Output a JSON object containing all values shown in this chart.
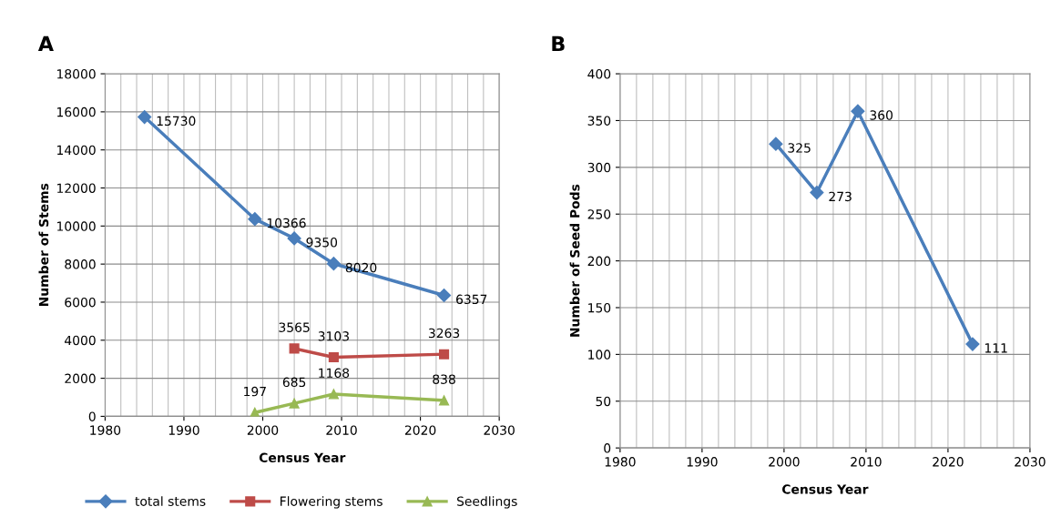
{
  "chart_data": [
    {
      "type": "line",
      "title": "A",
      "xlabel": "Census Year",
      "ylabel": "Number of Stems",
      "xlim": [
        1980,
        2030
      ],
      "xticks": [
        1980,
        1990,
        2000,
        2010,
        2020,
        2030
      ],
      "ylim": [
        0,
        18000
      ],
      "yticks": [
        0,
        2000,
        4000,
        6000,
        8000,
        10000,
        12000,
        14000,
        16000,
        18000
      ],
      "grid": true,
      "legend": "bottom",
      "data_labels": true,
      "series": [
        {
          "name": "total stems",
          "color": "#4a7ebb",
          "marker": "diamond",
          "x": [
            1985,
            1999,
            2004,
            2009,
            2023
          ],
          "values": [
            15730,
            10366,
            9350,
            8020,
            6357
          ]
        },
        {
          "name": "Flowering stems",
          "color": "#be4b48",
          "marker": "square",
          "x": [
            2004,
            2009,
            2023
          ],
          "values": [
            3565,
            3103,
            3263
          ]
        },
        {
          "name": "Seedlings",
          "color": "#98b954",
          "marker": "triangle",
          "x": [
            1999,
            2004,
            2009,
            2023
          ],
          "values": [
            197,
            685,
            1168,
            838
          ]
        }
      ]
    },
    {
      "type": "line",
      "title": "B",
      "xlabel": "Census Year",
      "ylabel": "Number of Seed Pods",
      "xlim": [
        1980,
        2030
      ],
      "xticks": [
        1980,
        1990,
        2000,
        2010,
        2020,
        2030
      ],
      "ylim": [
        0,
        400
      ],
      "yticks": [
        0,
        50,
        100,
        150,
        200,
        250,
        300,
        350,
        400
      ],
      "grid": true,
      "legend": false,
      "data_labels": true,
      "series": [
        {
          "color": "#4a7ebb",
          "marker": "diamond",
          "x": [
            1999,
            2004,
            2009,
            2023
          ],
          "values": [
            325,
            273,
            360,
            111
          ]
        }
      ]
    }
  ]
}
